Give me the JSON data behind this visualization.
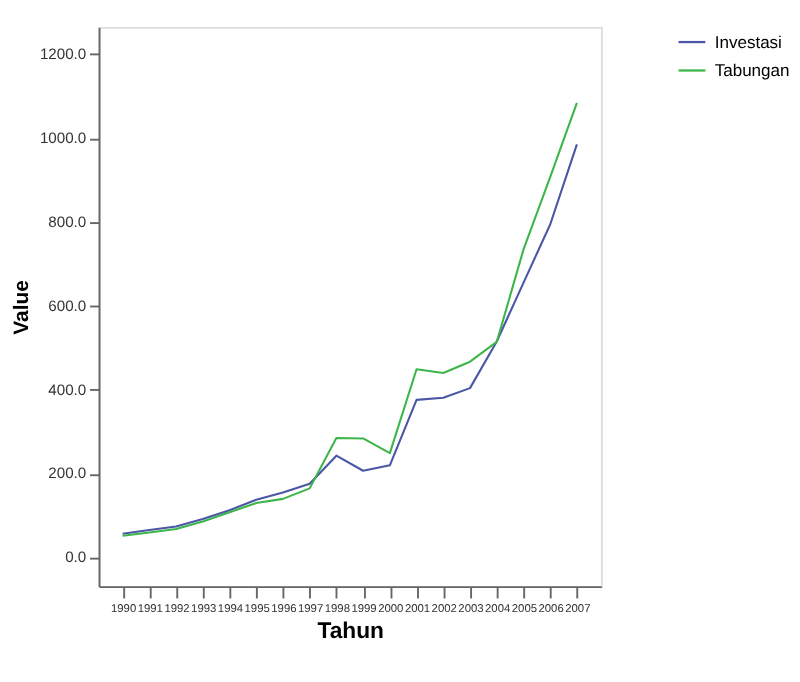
{
  "chart_data": {
    "type": "line",
    "xlabel": "Tahun",
    "ylabel": "Value",
    "categories": [
      "1990",
      "1991",
      "1992",
      "1993",
      "1994",
      "1995",
      "1996",
      "1997",
      "1998",
      "1999",
      "2000",
      "2001",
      "2002",
      "2003",
      "2004",
      "2005",
      "2006",
      "2007"
    ],
    "series": [
      {
        "name": "Investasi",
        "color": "#4a56a6",
        "values": [
          57,
          66,
          74,
          92,
          113,
          138,
          155,
          176,
          243,
          207,
          220,
          376,
          381,
          404,
          515,
          655,
          794,
          985
        ]
      },
      {
        "name": "Tabungan",
        "color": "#3db54a",
        "values": [
          52,
          60,
          68,
          86,
          108,
          130,
          140,
          165,
          285,
          284,
          249,
          449,
          440,
          467,
          514,
          734,
          907,
          1084
        ]
      }
    ],
    "ylim": [
      -68,
      1265
    ],
    "yticks": [
      {
        "value": 0,
        "label": "0.0"
      },
      {
        "value": 200,
        "label": "200.0"
      },
      {
        "value": 400,
        "label": "400.0"
      },
      {
        "value": 600,
        "label": "600.0"
      },
      {
        "value": 800,
        "label": "800.0"
      },
      {
        "value": 1000,
        "label": "1000.0"
      },
      {
        "value": 1200,
        "label": "1200.0"
      }
    ],
    "grid": false,
    "legend": "top right",
    "marker": "none",
    "line_style": "solid"
  }
}
